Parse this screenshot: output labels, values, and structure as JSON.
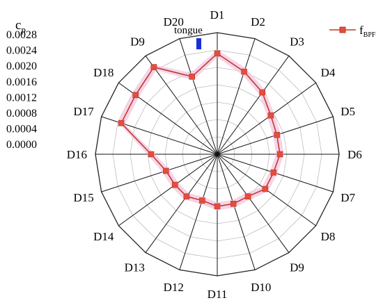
{
  "chart_data": {
    "type": "radar",
    "title": "",
    "axis_title_main": "c",
    "axis_title_sub": "p",
    "tick_labels": [
      "0.0028",
      "0.0024",
      "0.0020",
      "0.0016",
      "0.0012",
      "0.0008",
      "0.0004",
      "0.0000"
    ],
    "rlim": [
      0,
      0.0028
    ],
    "grid": true,
    "legend_position": "top-right",
    "categories": [
      "D1",
      "D2",
      "D3",
      "D4",
      "D5",
      "D6",
      "D7",
      "D8",
      "D9",
      "D10",
      "D11",
      "D12",
      "D13",
      "D14",
      "D15",
      "D16",
      "D17",
      "D18",
      "D9",
      "D20"
    ],
    "series": [
      {
        "name_main": "f",
        "name_sub": "BPF",
        "color": "#c0392b",
        "marker_color": "#e74c3c",
        "values": [
          0.00232,
          0.002,
          0.00176,
          0.00152,
          0.00144,
          0.00144,
          0.00136,
          0.00136,
          0.0012,
          0.0012,
          0.0012,
          0.00112,
          0.0012,
          0.0012,
          0.00124,
          0.00152,
          0.00232,
          0.00232,
          0.00248,
          0.00188
        ]
      }
    ],
    "shade_color": "#f4c6e0",
    "annotation": {
      "text": "tongue",
      "marker_color": "#1530d8"
    }
  }
}
